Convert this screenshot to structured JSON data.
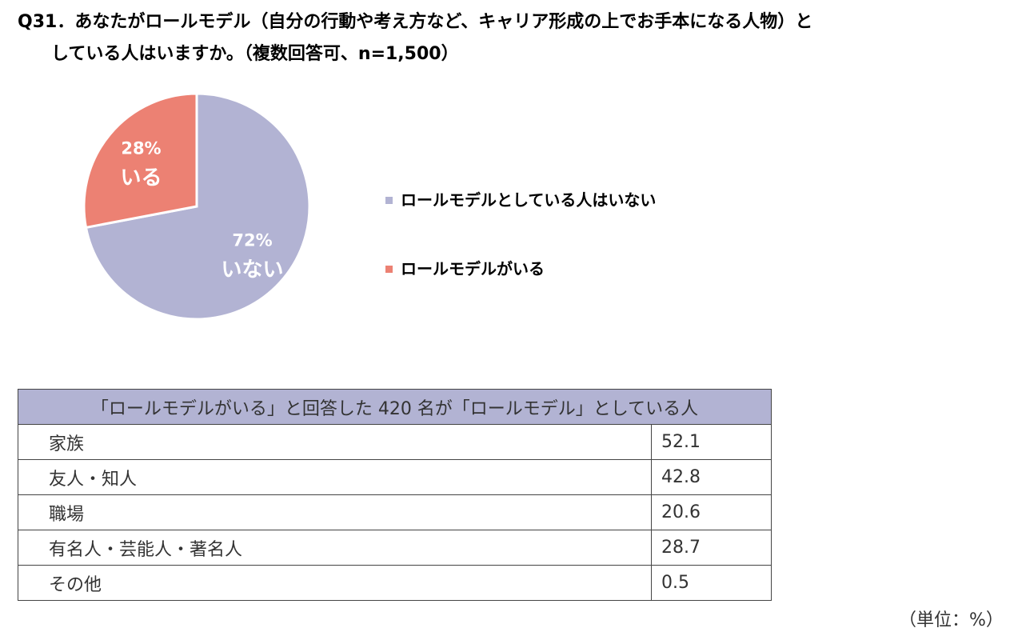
{
  "question": {
    "line1": "Q31．あなたがロールモデル（自分の行動や考え方など、キャリア形成の上でお手本になる人物）と",
    "line2": "している人はいますか。（複数回答可、n=1,500）"
  },
  "chart_data": [
    {
      "type": "pie",
      "slices": [
        {
          "name": "ロールモデルとしている人はいない",
          "value": 72,
          "pct_label": "72%",
          "short_label": "いない",
          "color": "#b2b3d3"
        },
        {
          "name": "ロールモデルがいる",
          "value": 28,
          "pct_label": "28%",
          "short_label": "いる",
          "color": "#ec8173"
        }
      ],
      "legend_position": "right"
    },
    {
      "type": "table",
      "header": "「ロールモデルがいる」と回答した 420 名が「ロールモデル」としている人",
      "rows": [
        {
          "label": "家族",
          "value": "52.1"
        },
        {
          "label": "友人・知人",
          "value": "42.8"
        },
        {
          "label": "職場",
          "value": "20.6"
        },
        {
          "label": "有名人・芸能人・著名人",
          "value": "28.7"
        },
        {
          "label": "その他",
          "value": "0.5"
        }
      ],
      "unit_note": "（単位：%）"
    }
  ]
}
